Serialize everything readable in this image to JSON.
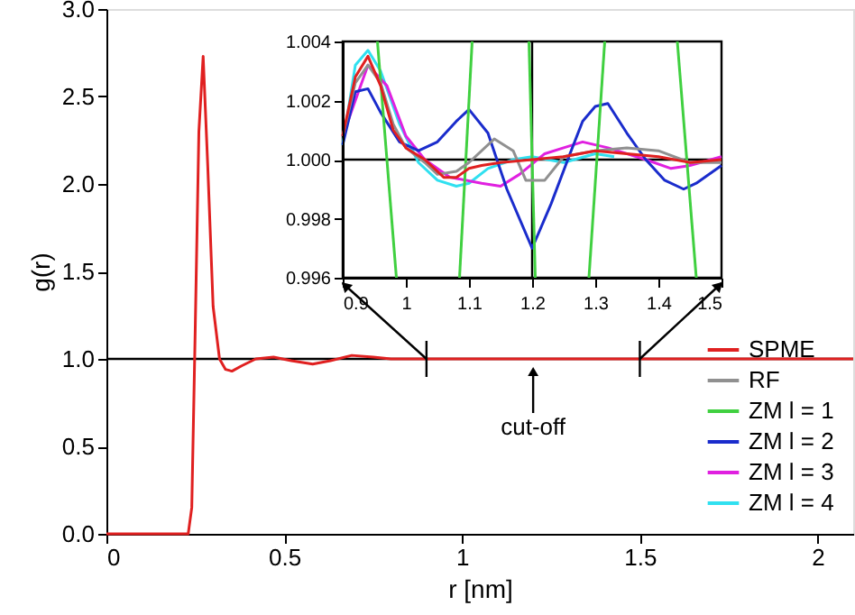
{
  "chart_data": [
    {
      "type": "line",
      "xlabel": "r [nm]",
      "ylabel": "g(r)",
      "xlim": [
        0,
        2.1
      ],
      "ylim": [
        0,
        3
      ],
      "xticks": [
        0,
        0.5,
        1,
        1.5,
        2
      ],
      "yticks": [
        {
          "value": 0,
          "label": "0.0"
        },
        {
          "value": 0.5,
          "label": "0.5"
        },
        {
          "value": 1,
          "label": "1.0"
        },
        {
          "value": 1.5,
          "label": "1.5"
        },
        {
          "value": 2,
          "label": "2.0"
        },
        {
          "value": 2.5,
          "label": "2.5"
        },
        {
          "value": 3,
          "label": "3.0"
        }
      ],
      "legend": "bottom right",
      "ref_lines": [
        {
          "axis": "y",
          "value": 1.0,
          "color": "#000000"
        }
      ],
      "annotations": [
        {
          "text": "cut-off",
          "x": 1.2,
          "y": 1.0
        }
      ],
      "x": [
        0,
        0.23,
        0.24,
        0.25,
        0.26,
        0.272,
        0.285,
        0.3,
        0.318,
        0.335,
        0.353,
        0.38,
        0.42,
        0.47,
        0.52,
        0.58,
        0.63,
        0.69,
        0.75,
        0.8,
        0.9,
        1.0,
        1.2,
        1.5,
        2.1
      ],
      "series": [
        {
          "name": "SPME",
          "color": "#e02020",
          "values": [
            0,
            0,
            0.15,
            1.2,
            2.3,
            2.73,
            2.1,
            1.3,
            1.0,
            0.94,
            0.93,
            0.96,
            1.0,
            1.01,
            0.99,
            0.97,
            0.99,
            1.02,
            1.01,
            1.0,
            1.0,
            1.0,
            1.0,
            1.0,
            1.0
          ]
        },
        {
          "name": "RF",
          "color": "#909090",
          "values": [
            null,
            null,
            null,
            null,
            null,
            null,
            null,
            null,
            null,
            null,
            null,
            null,
            null,
            null,
            null,
            null,
            null,
            null,
            null,
            null,
            null,
            null,
            null,
            null,
            null
          ]
        },
        {
          "name": "ZM l = 1",
          "color": "#40d040",
          "values": [
            null,
            null,
            null,
            null,
            null,
            null,
            null,
            null,
            null,
            null,
            null,
            null,
            null,
            null,
            null,
            null,
            null,
            null,
            null,
            null,
            null,
            null,
            null,
            null,
            null
          ]
        },
        {
          "name": "ZM l = 2",
          "color": "#1a2ccc",
          "values": [
            null,
            null,
            null,
            null,
            null,
            null,
            null,
            null,
            null,
            null,
            null,
            null,
            null,
            null,
            null,
            null,
            null,
            null,
            null,
            null,
            null,
            null,
            null,
            null,
            null
          ]
        },
        {
          "name": "ZM l = 3",
          "color": "#e020e0",
          "values": [
            null,
            null,
            null,
            null,
            null,
            null,
            null,
            null,
            null,
            null,
            null,
            null,
            null,
            null,
            null,
            null,
            null,
            null,
            null,
            null,
            null,
            null,
            null,
            null,
            null
          ]
        },
        {
          "name": "ZM l = 4",
          "color": "#30e0f0",
          "values": [
            null,
            null,
            null,
            null,
            null,
            null,
            null,
            null,
            null,
            null,
            null,
            null,
            null,
            null,
            null,
            null,
            null,
            null,
            null,
            null,
            null,
            null,
            null,
            null,
            null
          ]
        }
      ]
    },
    {
      "type": "line",
      "xlim": [
        0.9,
        1.5
      ],
      "ylim": [
        0.996,
        1.004
      ],
      "xticks": [
        0.9,
        1,
        1.1,
        1.2,
        1.3,
        1.4,
        1.5
      ],
      "yticks": [
        {
          "value": 0.996,
          "label": "0.996"
        },
        {
          "value": 0.998,
          "label": "0.998"
        },
        {
          "value": 1.0,
          "label": "1.000"
        },
        {
          "value": 1.002,
          "label": "1.002"
        },
        {
          "value": 1.004,
          "label": "1.004"
        }
      ],
      "ref_lines": [
        {
          "axis": "y",
          "value": 1.0,
          "color": "#000000"
        },
        {
          "axis": "x",
          "value": 1.2,
          "color": "#000000"
        }
      ],
      "series": [
        {
          "color": "#e02020",
          "x": [
            0.9,
            0.92,
            0.94,
            0.96,
            0.98,
            1.0,
            1.03,
            1.06,
            1.08,
            1.1,
            1.12,
            1.15,
            1.2,
            1.25,
            1.3,
            1.35,
            1.4,
            1.45,
            1.5
          ],
          "values": [
            1.0008,
            1.0028,
            1.0035,
            1.0025,
            1.001,
            1.0004,
            1.0,
            0.9994,
            0.9994,
            0.9997,
            0.9998,
            0.9999,
            1.0,
            1.0001,
            1.0003,
            1.0002,
            1.0001,
            0.9999,
            1.0
          ]
        },
        {
          "color": "#909090",
          "x": [
            0.9,
            0.92,
            0.94,
            0.96,
            0.98,
            1.0,
            1.03,
            1.05,
            1.08,
            1.1,
            1.14,
            1.17,
            1.19,
            1.22,
            1.25,
            1.3,
            1.35,
            1.4,
            1.45,
            1.5
          ],
          "values": [
            1.0008,
            1.0026,
            1.0032,
            1.0026,
            1.0012,
            1.0004,
            0.9999,
            0.9995,
            0.9996,
            0.9999,
            1.0007,
            1.0003,
            0.9993,
            0.9993,
            1.0001,
            1.0003,
            1.0004,
            1.0003,
            0.9999,
            0.9999
          ]
        },
        {
          "color": "#40d040",
          "x": [
            0.955,
            0.985,
            1.03,
            1.085,
            1.105,
            1.15,
            1.195,
            1.205,
            1.25,
            1.29,
            1.315,
            1.37,
            1.43,
            1.46
          ],
          "values": [
            1.004,
            0.996,
            null,
            0.996,
            1.004,
            null,
            1.004,
            0.996,
            null,
            0.996,
            1.004,
            null,
            1.004,
            0.996
          ]
        },
        {
          "color": "#1a2ccc",
          "x": [
            0.9,
            0.92,
            0.94,
            0.96,
            0.99,
            1.02,
            1.05,
            1.08,
            1.1,
            1.13,
            1.16,
            1.2,
            1.23,
            1.26,
            1.28,
            1.3,
            1.32,
            1.35,
            1.38,
            1.41,
            1.44,
            1.46,
            1.5
          ],
          "values": [
            1.0005,
            1.0023,
            1.0024,
            1.0016,
            1.0006,
            1.0003,
            1.0006,
            1.0013,
            1.0017,
            1.0009,
            0.999,
            0.997,
            0.9985,
            1.0002,
            1.0013,
            1.0018,
            1.0019,
            1.0009,
            1.0,
            0.9993,
            0.999,
            0.9992,
            0.9998
          ]
        },
        {
          "color": "#e020e0",
          "x": [
            0.9,
            0.94,
            0.97,
            1.0,
            1.03,
            1.07,
            1.12,
            1.15,
            1.18,
            1.22,
            1.25,
            1.28,
            1.32,
            1.38,
            1.42,
            1.45,
            1.5
          ],
          "values": [
            1.0008,
            1.0032,
            1.0025,
            1.0008,
            1.0,
            0.9994,
            0.9992,
            0.9991,
            0.9995,
            1.0002,
            1.0004,
            1.0006,
            1.0004,
            1.0,
            0.9997,
            0.9998,
            1.0001
          ]
        },
        {
          "color": "#30e0f0",
          "x": [
            0.9,
            0.92,
            0.94,
            0.96,
            0.99,
            1.02,
            1.05,
            1.08,
            1.1,
            1.13,
            1.17,
            1.2,
            1.25,
            1.3,
            1.33
          ],
          "values": [
            1.0005,
            1.0032,
            1.0037,
            1.003,
            1.0012,
            0.9999,
            0.9993,
            0.9991,
            0.9992,
            0.9997,
            1.0,
            1.0001,
            0.9999,
            1.0002,
            1.0001
          ]
        }
      ]
    }
  ]
}
